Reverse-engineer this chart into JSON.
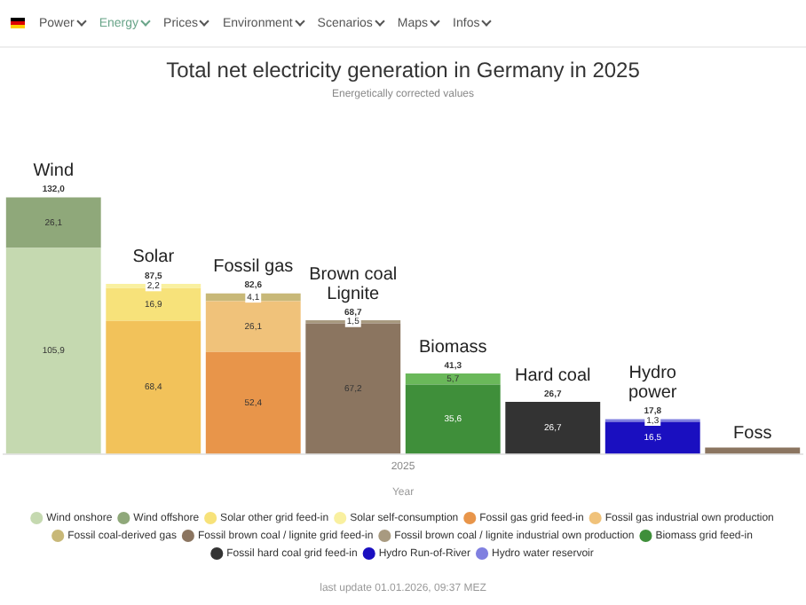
{
  "chart_data": {
    "type": "bar",
    "title": "Total net electricity generation in Germany in 2025",
    "subtitle": "Energetically corrected values",
    "xlabel": "Year",
    "annotations": [
      "Power",
      "Energy",
      "Prices",
      "Environment",
      "Scenarios",
      "Maps",
      "Infos",
      "2025",
      "last update 01.01.2026, 09:37 MEZ"
    ],
    "categories": [
      "Wind",
      "Solar",
      "Fossil gas",
      "Brown coal Lignite",
      "Biomass",
      "Hard coal",
      "Hydro power",
      "Foss"
    ],
    "stacked": true,
    "legend": "bottom",
    "grid": false,
    "totals": [
      "132,0",
      "87,5",
      "82,6",
      "68,7",
      "41,3",
      "26,7",
      "17,8",
      null
    ],
    "series": [
      {
        "name": "Wind onshore",
        "color": "#c5d9b0",
        "values": [
          105.9,
          null,
          null,
          null,
          null,
          null,
          null,
          null
        ],
        "value_labels": [
          "105,9",
          null,
          null,
          null,
          null,
          null,
          null,
          null
        ]
      },
      {
        "name": "Wind offshore",
        "color": "#8fa87a",
        "values": [
          26.1,
          null,
          null,
          null,
          null,
          null,
          null,
          null
        ],
        "value_labels": [
          "26,1",
          null,
          null,
          null,
          null,
          null,
          null,
          null
        ]
      },
      {
        "color": "#f2c25a",
        "values": [
          null,
          68.4,
          null,
          null,
          null,
          null,
          null,
          null
        ],
        "value_labels": [
          null,
          "68,4",
          null,
          null,
          null,
          null,
          null,
          null
        ]
      },
      {
        "name": "Solar other grid feed-in",
        "color": "#f7e27a",
        "values": [
          null,
          16.9,
          null,
          null,
          null,
          null,
          null,
          null
        ],
        "value_labels": [
          null,
          "16,9",
          null,
          null,
          null,
          null,
          null,
          null
        ]
      },
      {
        "name": "Solar self-consumption",
        "color": "#f9f0a0",
        "values": [
          null,
          2.2,
          null,
          null,
          null,
          null,
          null,
          null
        ],
        "value_labels": [
          null,
          "2,2",
          null,
          null,
          null,
          null,
          null,
          null
        ]
      },
      {
        "name": "Fossil gas grid feed-in",
        "color": "#e8954a",
        "values": [
          null,
          null,
          52.4,
          null,
          null,
          null,
          null,
          null
        ],
        "value_labels": [
          null,
          null,
          "52,4",
          null,
          null,
          null,
          null,
          null
        ]
      },
      {
        "name": "Fossil gas industrial own production",
        "color": "#f0c27a",
        "values": [
          null,
          null,
          26.1,
          null,
          null,
          null,
          null,
          null
        ],
        "value_labels": [
          null,
          null,
          "26,1",
          null,
          null,
          null,
          null,
          null
        ]
      },
      {
        "name": "Fossil coal-derived gas",
        "color": "#c8b878",
        "values": [
          null,
          null,
          4.1,
          null,
          null,
          null,
          null,
          null
        ],
        "value_labels": [
          null,
          null,
          "4,1",
          null,
          null,
          null,
          null,
          null
        ]
      },
      {
        "name": "Fossil brown coal / lignite grid feed-in",
        "color": "#8b7560",
        "values": [
          null,
          null,
          null,
          67.2,
          null,
          null,
          null,
          null
        ],
        "value_labels": [
          null,
          null,
          null,
          "67,2",
          null,
          null,
          null,
          null
        ]
      },
      {
        "name": "Fossil brown coal / lignite industrial own production",
        "color": "#a89a80",
        "values": [
          null,
          null,
          null,
          1.5,
          null,
          null,
          null,
          null
        ],
        "value_labels": [
          null,
          null,
          null,
          "1,5",
          null,
          null,
          null,
          null
        ]
      },
      {
        "name": "Biomass grid feed-in",
        "color": "#3f8f3a",
        "values": [
          null,
          null,
          null,
          null,
          35.6,
          null,
          null,
          null
        ],
        "value_labels": [
          null,
          null,
          null,
          null,
          "35,6",
          null,
          null,
          null
        ]
      },
      {
        "color": "#6ab85a",
        "values": [
          null,
          null,
          null,
          null,
          5.7,
          null,
          null,
          null
        ],
        "value_labels": [
          null,
          null,
          null,
          null,
          "5,7",
          null,
          null,
          null
        ]
      },
      {
        "name": "Fossil hard coal grid feed-in",
        "color": "#333333",
        "values": [
          null,
          null,
          null,
          null,
          null,
          26.7,
          null,
          null
        ],
        "value_labels": [
          null,
          null,
          null,
          null,
          null,
          "26,7",
          null,
          null
        ]
      },
      {
        "name": "Hydro Run-of-River",
        "color": "#1a0fc0",
        "values": [
          null,
          null,
          null,
          null,
          null,
          null,
          16.5,
          null
        ],
        "value_labels": [
          null,
          null,
          null,
          null,
          null,
          null,
          "16,5",
          null
        ]
      },
      {
        "name": "Hydro water reservoir",
        "color": "#8080e0",
        "values": [
          null,
          null,
          null,
          null,
          null,
          null,
          1.3,
          null
        ],
        "value_labels": [
          null,
          null,
          null,
          null,
          null,
          null,
          "1,3",
          null
        ]
      },
      {
        "color": "#8b7560",
        "values": [
          null,
          null,
          null,
          null,
          null,
          null,
          null,
          3.2
        ]
      }
    ]
  }
}
